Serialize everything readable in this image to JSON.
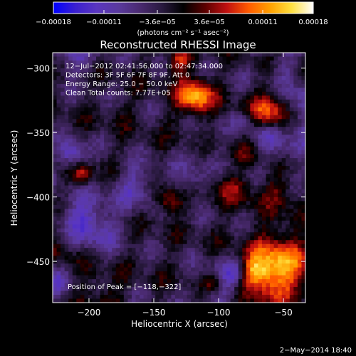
{
  "chart_data": {
    "type": "heatmap",
    "title": "Reconstructed RHESSI Image",
    "xlabel": "Heliocentric X (arcsec)",
    "ylabel": "Heliocentric Y (arcsec)",
    "xlim": [
      -228,
      -33
    ],
    "ylim": [
      -482,
      -288
    ],
    "x_ticks": [
      -200,
      -150,
      -100,
      -50
    ],
    "x_tick_labels": [
      "−200",
      "−150",
      "−100",
      "−50"
    ],
    "y_ticks": [
      -300,
      -350,
      -400,
      -450
    ],
    "y_tick_labels": [
      "−300",
      "−350",
      "−400",
      "−450"
    ],
    "colorbar": {
      "min": -0.00018,
      "max": 0.00018,
      "ticks": [
        -0.00018,
        -0.00011,
        -3.6e-05,
        3.6e-05,
        0.00011,
        0.00018
      ],
      "tick_labels": [
        "−0.00018",
        "−0.00011",
        "−3.6e−05",
        "3.6e−05",
        "0.00011",
        "0.00018"
      ],
      "units_label": "(photons cm⁻² s⁻¹ asec⁻²)"
    },
    "info_lines": [
      "12−Jul−2012 02:41:56.000 to 02:47:34.000",
      "Detectors: 3F 5F 6F 7F 8F 9F, Att 0",
      "Energy Range: 25.0 − 50.0 keV",
      "Clean     Total counts: 7.77E+05"
    ],
    "peak_label": "Position of Peak = [−118,−322]",
    "peak_position": [
      -118,
      -322
    ],
    "colormap": [
      "#0000ff",
      "#3a1fd0",
      "#5a36c0",
      "#5a3a9e",
      "#4a2a70",
      "#2a1a40",
      "#000000",
      "#5a0000",
      "#c01010",
      "#ff5a00",
      "#ffa000",
      "#ffe040",
      "#ffffff"
    ]
  },
  "footer": {
    "timestamp": "2−May−2014 18:40"
  }
}
